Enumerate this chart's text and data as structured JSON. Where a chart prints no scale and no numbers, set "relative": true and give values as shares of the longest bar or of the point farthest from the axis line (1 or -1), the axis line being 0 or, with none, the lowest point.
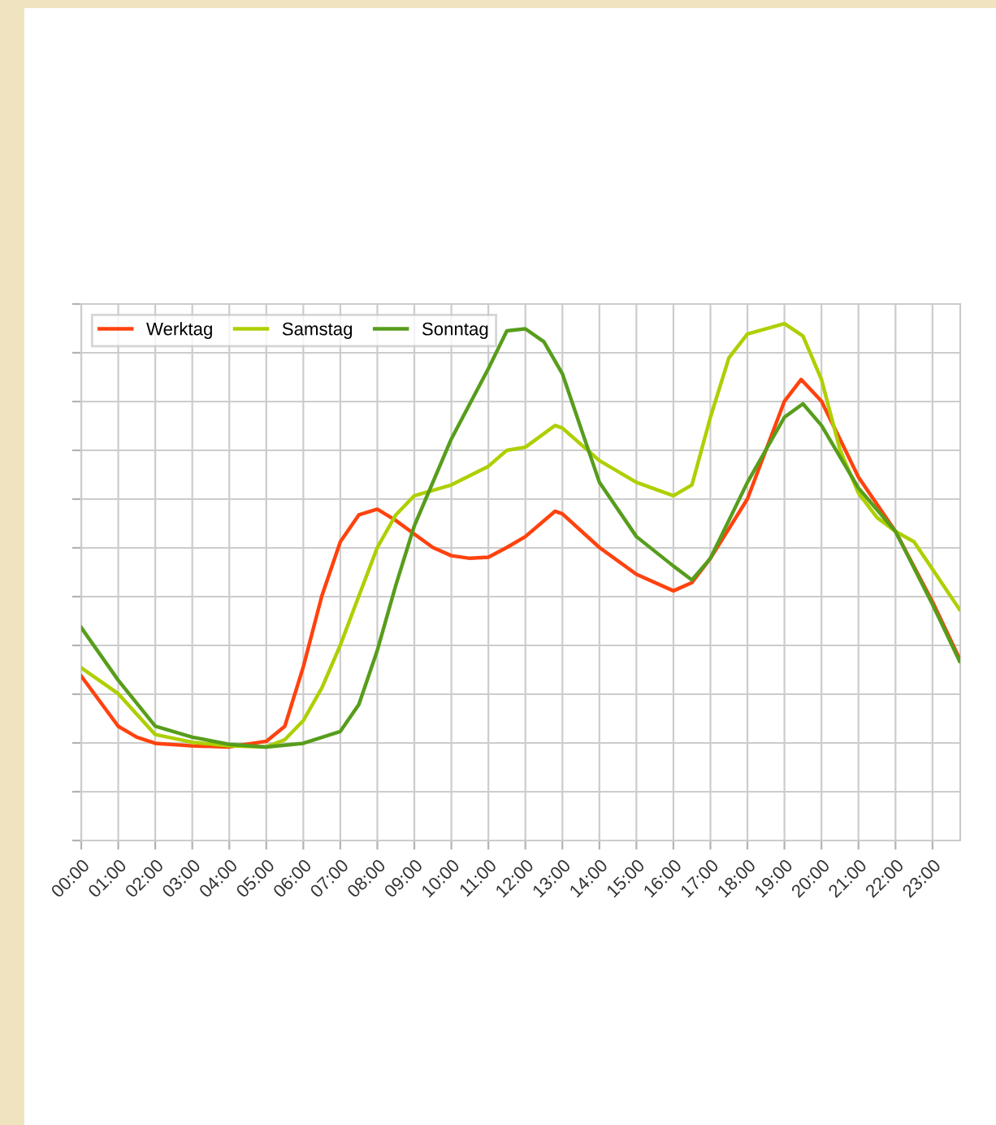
{
  "chart_data": {
    "type": "line",
    "relative": true,
    "grid": true,
    "legend": "top left",
    "line_style": "solid",
    "marker": "none",
    "xlim": [
      0,
      23.75
    ],
    "xticks": [
      {
        "value": 0,
        "label": "00:00"
      },
      {
        "value": 1,
        "label": "01:00"
      },
      {
        "value": 2,
        "label": "02:00"
      },
      {
        "value": 3,
        "label": "03:00"
      },
      {
        "value": 4,
        "label": "04:00"
      },
      {
        "value": 5,
        "label": "05:00"
      },
      {
        "value": 6,
        "label": "06:00"
      },
      {
        "value": 7,
        "label": "07:00"
      },
      {
        "value": 8,
        "label": "08:00"
      },
      {
        "value": 9,
        "label": "09:00"
      },
      {
        "value": 10,
        "label": "10:00"
      },
      {
        "value": 11,
        "label": "11:00"
      },
      {
        "value": 12,
        "label": "12:00"
      },
      {
        "value": 13,
        "label": "13:00"
      },
      {
        "value": 14,
        "label": "14:00"
      },
      {
        "value": 15,
        "label": "15:00"
      },
      {
        "value": 16,
        "label": "16:00"
      },
      {
        "value": 17,
        "label": "17:00"
      },
      {
        "value": 18,
        "label": "18:00"
      },
      {
        "value": 19,
        "label": "19:00"
      },
      {
        "value": 20,
        "label": "20:00"
      },
      {
        "value": 21,
        "label": "21:00"
      },
      {
        "value": 22,
        "label": "22:00"
      },
      {
        "value": 23,
        "label": "23:00"
      }
    ],
    "series": [
      {
        "name": "Werktag",
        "color": "#ff420e",
        "x": [
          0,
          1,
          1.5,
          2,
          3,
          4,
          5,
          5.5,
          6,
          6.5,
          7,
          7.5,
          8,
          8.5,
          9,
          9.5,
          10,
          10.5,
          11,
          11.5,
          12,
          12.8,
          13,
          14,
          15,
          16,
          16.5,
          17,
          18,
          19,
          19.45,
          20,
          21,
          22,
          23,
          23.73
        ],
        "values": [
          0.318,
          0.221,
          0.2,
          0.188,
          0.183,
          0.181,
          0.192,
          0.221,
          0.336,
          0.473,
          0.578,
          0.63,
          0.641,
          0.619,
          0.593,
          0.567,
          0.551,
          0.546,
          0.548,
          0.567,
          0.588,
          0.637,
          0.632,
          0.567,
          0.515,
          0.483,
          0.499,
          0.546,
          0.661,
          0.85,
          0.892,
          0.85,
          0.703,
          0.598,
          0.462,
          0.352
        ]
      },
      {
        "name": "Samstag",
        "color": "#aecf00",
        "x": [
          0,
          1,
          2,
          3,
          4,
          5,
          5.5,
          6,
          6.5,
          7,
          7.5,
          8,
          8.5,
          9,
          10,
          11,
          11.5,
          12,
          12.8,
          13,
          14,
          15,
          16,
          16.5,
          17,
          17.5,
          18,
          19,
          19.5,
          20,
          20.5,
          21,
          21.5,
          22,
          22.5,
          23,
          23.73
        ],
        "values": [
          0.334,
          0.284,
          0.205,
          0.19,
          0.183,
          0.181,
          0.195,
          0.232,
          0.295,
          0.378,
          0.473,
          0.567,
          0.63,
          0.667,
          0.688,
          0.724,
          0.755,
          0.761,
          0.803,
          0.798,
          0.735,
          0.693,
          0.667,
          0.688,
          0.819,
          0.934,
          0.98,
          1.0,
          0.976,
          0.892,
          0.756,
          0.672,
          0.625,
          0.598,
          0.578,
          0.525,
          0.447
        ]
      },
      {
        "name": "Sonntag",
        "color": "#579d1c",
        "x": [
          0,
          1,
          2,
          3,
          4,
          5,
          6,
          7,
          7.5,
          8,
          8.5,
          9,
          10,
          11,
          11.5,
          12,
          12.5,
          13,
          13.5,
          14,
          15,
          16,
          16.5,
          17,
          18,
          19,
          19.5,
          20,
          21,
          22,
          23,
          23.73
        ],
        "values": [
          0.412,
          0.31,
          0.221,
          0.2,
          0.186,
          0.181,
          0.188,
          0.211,
          0.263,
          0.368,
          0.494,
          0.609,
          0.777,
          0.913,
          0.986,
          0.99,
          0.965,
          0.903,
          0.798,
          0.693,
          0.588,
          0.531,
          0.504,
          0.546,
          0.693,
          0.819,
          0.845,
          0.803,
          0.682,
          0.598,
          0.457,
          0.347
        ]
      }
    ]
  }
}
